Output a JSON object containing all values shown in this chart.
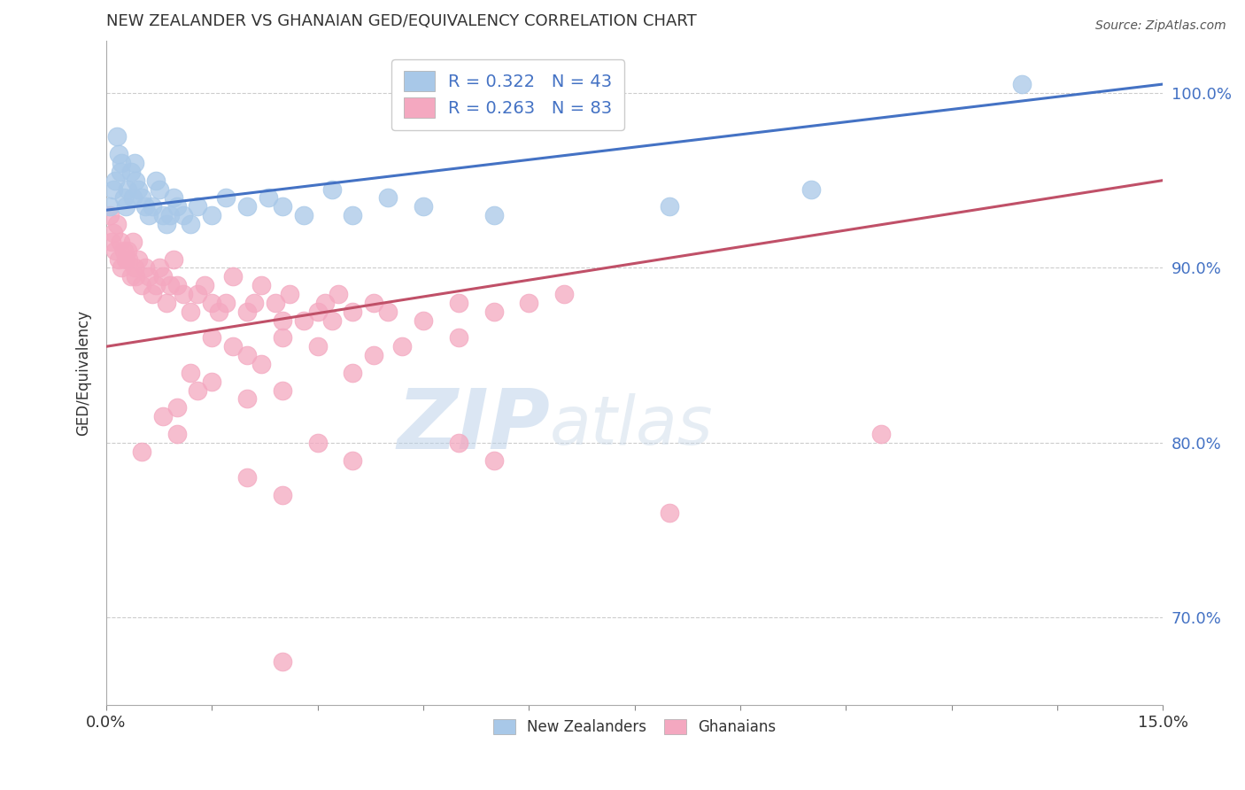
{
  "title": "NEW ZEALANDER VS GHANAIAN GED/EQUIVALENCY CORRELATION CHART",
  "source": "Source: ZipAtlas.com",
  "xlabel": "",
  "ylabel": "GED/Equivalency",
  "xmin": 0.0,
  "xmax": 15.0,
  "ymin": 65.0,
  "ymax": 103.0,
  "ytick_values": [
    70.0,
    80.0,
    90.0,
    100.0
  ],
  "blue_R": 0.322,
  "blue_N": 43,
  "pink_R": 0.263,
  "pink_N": 83,
  "blue_color": "#a8c8e8",
  "pink_color": "#f4a8c0",
  "blue_line_color": "#4472c4",
  "pink_line_color": "#c0506878",
  "pink_line_color2": "#c05068",
  "legend_R_color": "#4472c4",
  "watermark_zip": "ZIP",
  "watermark_atlas": "atlas",
  "blue_line_x0": 0.0,
  "blue_line_y0": 93.3,
  "blue_line_x1": 15.0,
  "blue_line_y1": 100.5,
  "pink_line_x0": 0.0,
  "pink_line_y0": 85.5,
  "pink_line_x1": 15.0,
  "pink_line_y1": 95.0,
  "blue_scatter_x": [
    0.05,
    0.1,
    0.12,
    0.15,
    0.18,
    0.2,
    0.22,
    0.25,
    0.28,
    0.3,
    0.35,
    0.38,
    0.4,
    0.42,
    0.45,
    0.5,
    0.55,
    0.6,
    0.65,
    0.7,
    0.75,
    0.8,
    0.85,
    0.9,
    0.95,
    1.0,
    1.1,
    1.2,
    1.3,
    1.5,
    1.7,
    2.0,
    2.3,
    2.5,
    2.8,
    3.2,
    3.5,
    4.0,
    4.5,
    5.5,
    8.0,
    10.0,
    13.0
  ],
  "blue_scatter_y": [
    93.5,
    94.5,
    95.0,
    97.5,
    96.5,
    95.5,
    96.0,
    94.0,
    93.5,
    94.5,
    95.5,
    94.0,
    96.0,
    95.0,
    94.5,
    94.0,
    93.5,
    93.0,
    93.5,
    95.0,
    94.5,
    93.0,
    92.5,
    93.0,
    94.0,
    93.5,
    93.0,
    92.5,
    93.5,
    93.0,
    94.0,
    93.5,
    94.0,
    93.5,
    93.0,
    94.5,
    93.0,
    94.0,
    93.5,
    93.0,
    93.5,
    94.5,
    100.5
  ],
  "pink_scatter_x": [
    0.05,
    0.08,
    0.1,
    0.12,
    0.15,
    0.18,
    0.2,
    0.22,
    0.25,
    0.28,
    0.3,
    0.32,
    0.35,
    0.38,
    0.4,
    0.42,
    0.45,
    0.5,
    0.55,
    0.6,
    0.65,
    0.7,
    0.75,
    0.8,
    0.85,
    0.9,
    0.95,
    1.0,
    1.1,
    1.2,
    1.3,
    1.4,
    1.5,
    1.6,
    1.7,
    1.8,
    2.0,
    2.1,
    2.2,
    2.4,
    2.5,
    2.6,
    2.8,
    3.0,
    3.1,
    3.2,
    3.3,
    3.5,
    3.8,
    4.0,
    4.5,
    5.0,
    5.5,
    6.0,
    6.5,
    2.0,
    1.5,
    1.8,
    2.2,
    2.5,
    3.0,
    3.5,
    3.8,
    4.2,
    5.0,
    1.2,
    1.3,
    1.0,
    1.5,
    2.0,
    2.5,
    0.8,
    1.0,
    3.0,
    3.5,
    5.0,
    0.5,
    5.5,
    2.0,
    2.5,
    11.0,
    8.0,
    2.5
  ],
  "pink_scatter_y": [
    93.0,
    91.5,
    92.0,
    91.0,
    92.5,
    90.5,
    91.5,
    90.0,
    91.0,
    90.5,
    91.0,
    90.5,
    89.5,
    91.5,
    90.0,
    89.5,
    90.5,
    89.0,
    90.0,
    89.5,
    88.5,
    89.0,
    90.0,
    89.5,
    88.0,
    89.0,
    90.5,
    89.0,
    88.5,
    87.5,
    88.5,
    89.0,
    88.0,
    87.5,
    88.0,
    89.5,
    87.5,
    88.0,
    89.0,
    88.0,
    87.0,
    88.5,
    87.0,
    87.5,
    88.0,
    87.0,
    88.5,
    87.5,
    88.0,
    87.5,
    87.0,
    88.0,
    87.5,
    88.0,
    88.5,
    85.0,
    86.0,
    85.5,
    84.5,
    86.0,
    85.5,
    84.0,
    85.0,
    85.5,
    86.0,
    84.0,
    83.0,
    82.0,
    83.5,
    82.5,
    83.0,
    81.5,
    80.5,
    80.0,
    79.0,
    80.0,
    79.5,
    79.0,
    78.0,
    77.0,
    80.5,
    76.0,
    67.5
  ]
}
